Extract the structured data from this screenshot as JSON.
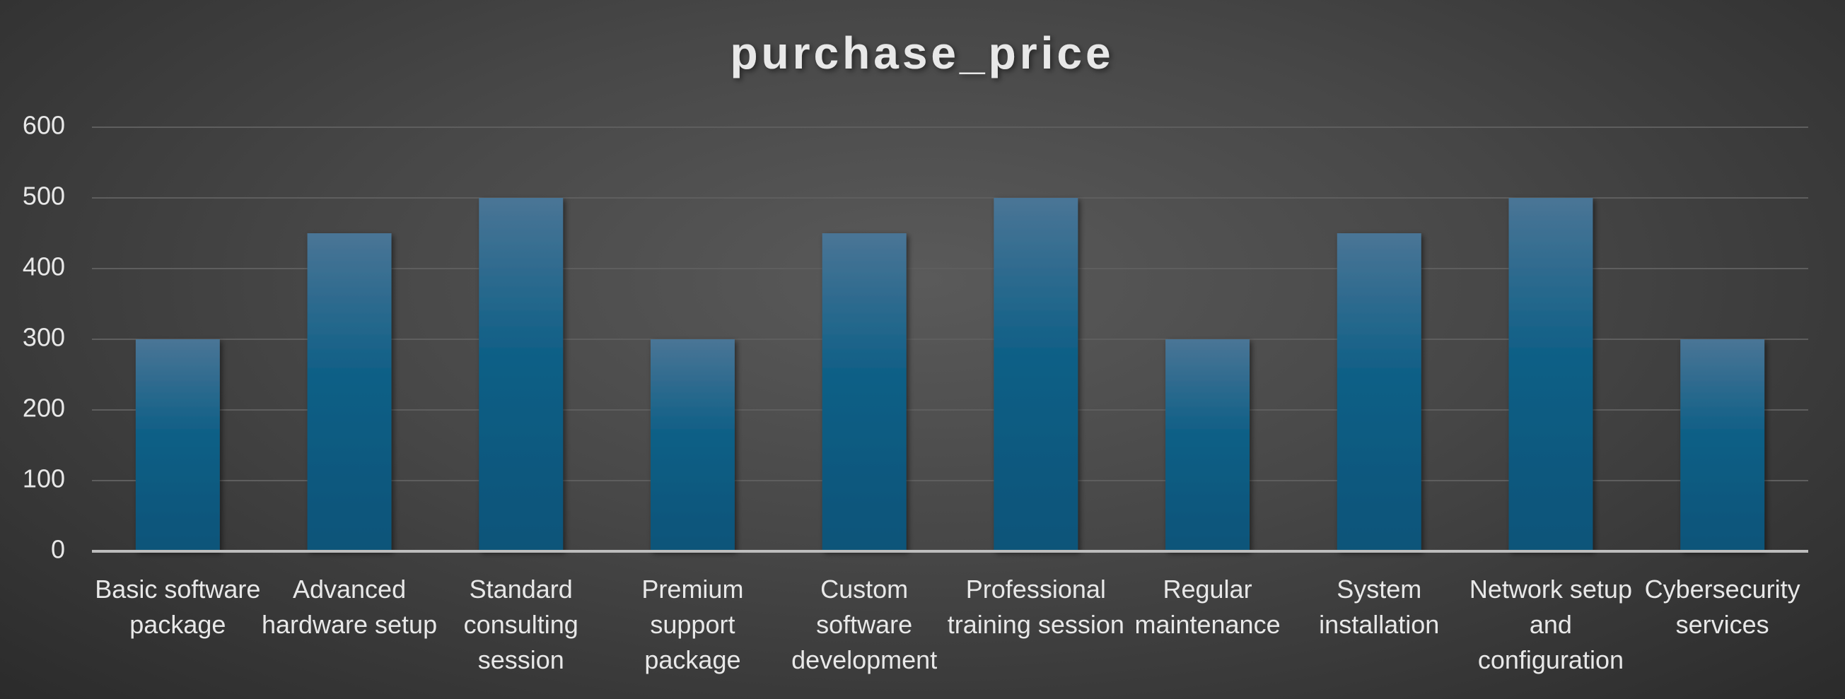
{
  "chart_data": {
    "type": "bar",
    "title": "purchase_price",
    "categories": [
      "Basic software package",
      "Advanced hardware setup",
      "Standard consulting session",
      "Premium support package",
      "Custom software development",
      "Professional training session",
      "Regular maintenance",
      "System installation",
      "Network setup and configuration",
      "Cybersecurity services"
    ],
    "values": [
      300,
      450,
      500,
      300,
      450,
      500,
      300,
      450,
      500,
      300
    ],
    "color": "#0e5f86",
    "ylim": [
      0,
      600
    ],
    "yticks": [
      0,
      100,
      200,
      300,
      400,
      500,
      600
    ],
    "grid": true
  }
}
